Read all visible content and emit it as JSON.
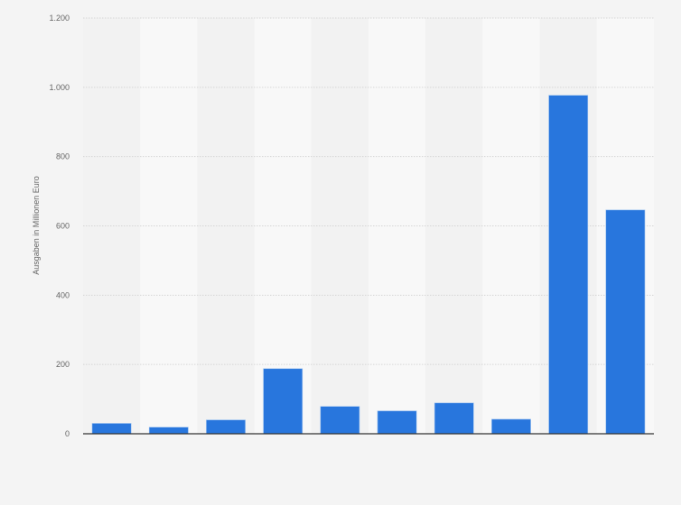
{
  "chart_data": {
    "type": "bar",
    "title": "",
    "xlabel": "",
    "ylabel": "Ausgaben in Millionen Euro",
    "ylim": [
      0,
      1200
    ],
    "yticks": [
      0,
      200,
      400,
      600,
      800,
      1000,
      1200
    ],
    "ytick_labels": [
      "0",
      "200",
      "400",
      "600",
      "800",
      "1.000",
      "1.200"
    ],
    "grid": true,
    "categories": [
      "",
      "",
      "",
      "",
      "",
      "",
      "",
      "",
      "",
      ""
    ],
    "values": [
      30,
      19,
      40,
      188,
      79,
      66,
      89,
      42,
      977,
      646
    ],
    "bar_color": "#2876dd"
  }
}
